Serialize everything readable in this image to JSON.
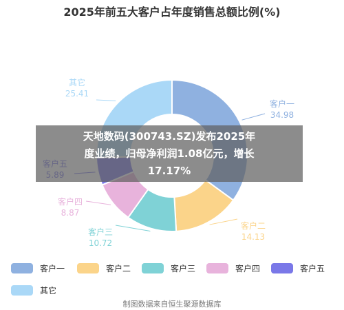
{
  "title": "2025年前五大客户占年度销售总额比例(%)",
  "chart_data": {
    "type": "pie",
    "title": "2025年前五大客户占年度销售总额比例(%)",
    "categories": [
      "客户一",
      "客户二",
      "客户三",
      "客户四",
      "客户五",
      "其它"
    ],
    "values": [
      34.98,
      14.13,
      10.72,
      8.87,
      5.89,
      25.41
    ],
    "value_labels": [
      "34.98",
      "14.13",
      "10.72",
      "8.87",
      "5.89",
      "25.41"
    ],
    "colors": [
      "#8fb1e0",
      "#fbd48a",
      "#7fd2d6",
      "#e8b3dc",
      "#7a78e8",
      "#aad8f7"
    ],
    "legend_position": "bottom"
  },
  "overlay": {
    "lines": [
      "天地数码(300743.SZ)发布2025年",
      "度业绩，归母净利润1.08亿元，增长",
      "17.17%"
    ]
  },
  "source": "制图数据来自恒生聚源数据库"
}
